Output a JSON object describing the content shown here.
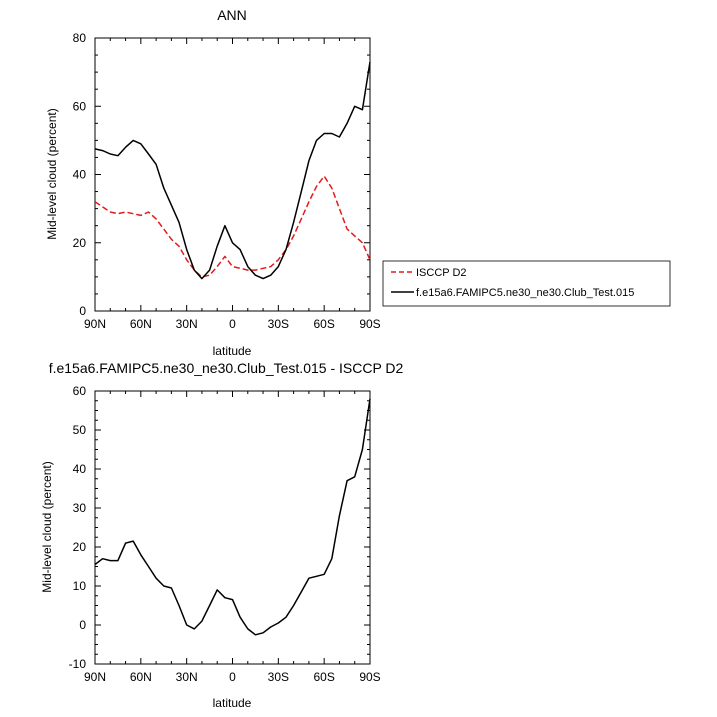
{
  "chart_data": [
    {
      "type": "line",
      "title": "ANN",
      "xlabel": "latitude",
      "ylabel": "Mid-level cloud (percent)",
      "xlim": [
        -90,
        90
      ],
      "ylim": [
        0,
        80
      ],
      "xticks": [
        {
          "value": -90,
          "label": "90N"
        },
        {
          "value": -60,
          "label": "60N"
        },
        {
          "value": -30,
          "label": "30N"
        },
        {
          "value": 0,
          "label": "0"
        },
        {
          "value": 30,
          "label": "30S"
        },
        {
          "value": 60,
          "label": "60S"
        },
        {
          "value": 90,
          "label": "90S"
        }
      ],
      "yticks": [
        0,
        20,
        40,
        60,
        80
      ],
      "legend_position": "right",
      "series": [
        {
          "name": "ISCCP D2",
          "color": "#e31a1c",
          "dash": "dashed",
          "x": [
            -90,
            -85,
            -80,
            -75,
            -70,
            -65,
            -60,
            -55,
            -50,
            -45,
            -40,
            -35,
            -30,
            -25,
            -20,
            -15,
            -10,
            -5,
            0,
            5,
            10,
            15,
            20,
            25,
            30,
            35,
            40,
            45,
            50,
            55,
            60,
            65,
            70,
            75,
            80,
            85,
            90
          ],
          "y": [
            32,
            30.5,
            29,
            28.5,
            29,
            28.5,
            28,
            29,
            27,
            24,
            21,
            19,
            15,
            12,
            10,
            10.5,
            13,
            16,
            13,
            12.5,
            12,
            12,
            12.5,
            13,
            15,
            18,
            22,
            27,
            32,
            36.5,
            39.5,
            36,
            30,
            24,
            22,
            20,
            15
          ]
        },
        {
          "name": "f.e15a6.FAMIPC5.ne30_ne30.Club_Test.015",
          "color": "#000000",
          "dash": "solid",
          "x": [
            -90,
            -85,
            -80,
            -75,
            -70,
            -65,
            -60,
            -55,
            -50,
            -45,
            -40,
            -35,
            -30,
            -25,
            -20,
            -15,
            -10,
            -5,
            0,
            5,
            10,
            15,
            20,
            25,
            30,
            35,
            40,
            45,
            50,
            55,
            60,
            65,
            70,
            75,
            80,
            85,
            90
          ],
          "y": [
            47.5,
            47,
            46,
            45.5,
            48,
            50,
            49,
            46,
            43,
            36,
            31,
            26,
            18,
            12,
            9.5,
            12,
            19,
            25,
            20,
            18,
            13,
            10.5,
            9.5,
            10.5,
            13,
            18,
            26,
            35,
            44,
            50,
            52,
            52,
            51,
            55,
            60,
            59,
            73
          ]
        }
      ]
    },
    {
      "type": "line",
      "title": "f.e15a6.FAMIPC5.ne30_ne30.Club_Test.015 - ISCCP D2",
      "xlabel": "latitude",
      "ylabel": "Mid-level cloud (percent)",
      "xlim": [
        -90,
        90
      ],
      "ylim": [
        -10,
        60
      ],
      "xticks": [
        {
          "value": -90,
          "label": "90N"
        },
        {
          "value": -60,
          "label": "60N"
        },
        {
          "value": -30,
          "label": "30N"
        },
        {
          "value": 0,
          "label": "0"
        },
        {
          "value": 30,
          "label": "30S"
        },
        {
          "value": 60,
          "label": "60S"
        },
        {
          "value": 90,
          "label": "90S"
        }
      ],
      "yticks": [
        -10,
        0,
        10,
        20,
        30,
        40,
        50,
        60
      ],
      "series": [
        {
          "color": "#000000",
          "dash": "solid",
          "x": [
            -90,
            -85,
            -80,
            -75,
            -70,
            -65,
            -60,
            -55,
            -50,
            -45,
            -40,
            -35,
            -30,
            -25,
            -20,
            -15,
            -10,
            -5,
            0,
            5,
            10,
            15,
            20,
            25,
            30,
            35,
            40,
            45,
            50,
            55,
            60,
            65,
            70,
            75,
            80,
            85,
            90
          ],
          "y": [
            15.5,
            17,
            16.5,
            16.5,
            21,
            21.5,
            18,
            15,
            12,
            10,
            9.5,
            5,
            0,
            -1,
            1,
            5,
            9,
            7,
            6.5,
            2,
            -1,
            -2.5,
            -2,
            -0.5,
            0.5,
            2,
            5,
            8.5,
            12,
            12.5,
            13,
            17,
            28,
            37,
            38,
            45,
            58
          ]
        }
      ]
    }
  ]
}
